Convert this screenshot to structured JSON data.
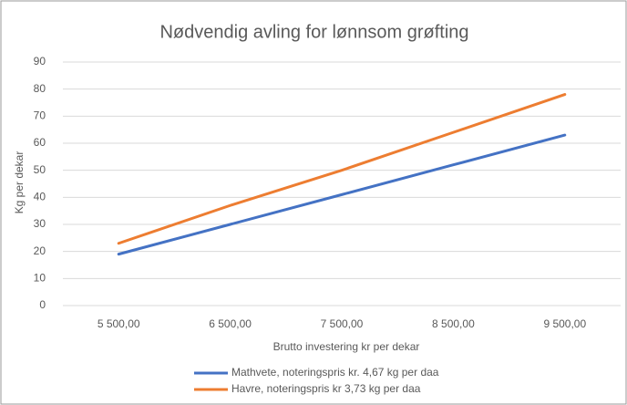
{
  "chart_data": {
    "type": "line",
    "title": "Nødvendig avling for lønnsom grøfting",
    "x_label": "Brutto investering kr per dekar",
    "y_label": "Kg per dekar",
    "categories": [
      "5 500,00",
      "6 500,00",
      "7 500,00",
      "8 500,00",
      "9 500,00"
    ],
    "series": [
      {
        "name": "Mathvete, noteringspris kr. 4,67 kg per daa",
        "color": "#4472c4",
        "values": [
          19,
          30,
          41,
          52,
          63
        ]
      },
      {
        "name": "Havre, noteringspris kr 3,73 kg per daa",
        "color": "#ed7d31",
        "values": [
          23,
          37,
          50,
          64,
          78
        ]
      }
    ],
    "ylim": [
      0,
      90
    ],
    "yticks": [
      0,
      10,
      20,
      30,
      40,
      50,
      60,
      70,
      80,
      90
    ],
    "grid": true,
    "legend": "bottom"
  }
}
